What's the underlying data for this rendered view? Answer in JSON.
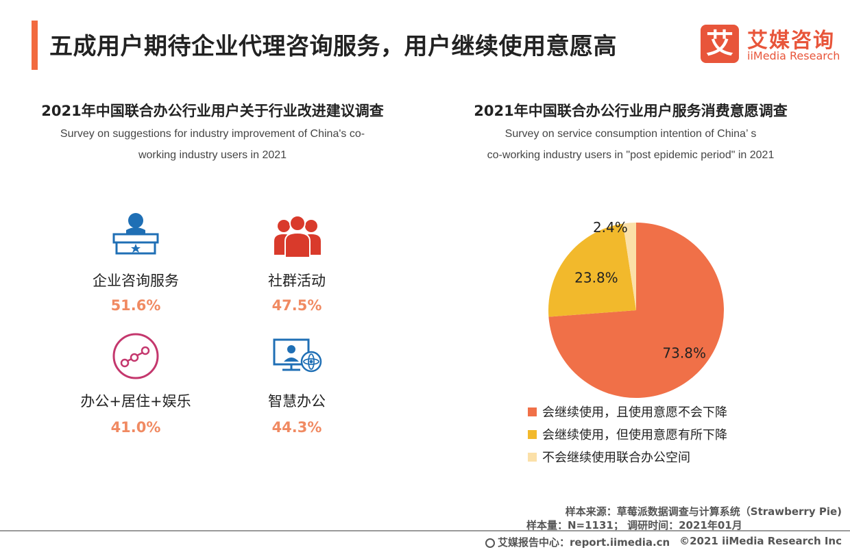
{
  "header": {
    "title": "五成用户期待企业代理咨询服务，用户继续使用意愿高",
    "logo_mark": "艾",
    "logo_cn": "艾媒咨询",
    "logo_en": "iiMedia Research"
  },
  "left": {
    "title": "2021年中国联合办公行业用户关于行业改进建议调查",
    "subtitle_line1": "Survey on suggestions for industry improvement of China's co-",
    "subtitle_line2": "working  industry users in 2021",
    "items": [
      {
        "label": "企业咨询服务",
        "value": "51.6%",
        "icon": "consultant-icon"
      },
      {
        "label": "社群活动",
        "value": "47.5%",
        "icon": "community-icon"
      },
      {
        "label": "办公+居住+娱乐",
        "value": "41.0%",
        "icon": "lifestyle-icon"
      },
      {
        "label": "智慧办公",
        "value": "44.3%",
        "icon": "smart-office-icon"
      }
    ]
  },
  "right": {
    "title": "2021年中国联合办公行业用户服务消费意愿调查",
    "subtitle_line1": "Survey on service consumption intention of China’ s",
    "subtitle_line2": "co-working  industry users in \"post epidemic period\" in 2021"
  },
  "chart_data": {
    "type": "pie",
    "title": "2021年中国联合办公行业用户服务消费意愿调查",
    "slices": [
      {
        "label": "会继续使用，且使用意愿不会下降",
        "value": 73.8,
        "display": "73.8%",
        "color": "#f07048"
      },
      {
        "label": "会继续使用，但使用意愿有所下降",
        "value": 23.8,
        "display": "23.8%",
        "color": "#f2b92c"
      },
      {
        "label": "不会继续使用联合办公空间",
        "value": 2.4,
        "display": "2.4%",
        "color": "#fbe0a8"
      }
    ],
    "legend_position": "bottom"
  },
  "footer": {
    "source": "样本来源：草莓派数据调查与计算系统（Strawberry Pie)",
    "sample": "样本量：N=1131；  调研时间：2021年01月",
    "site": "艾媒报告中心：report.iimedia.cn",
    "copyright": "©2021  iiMedia Research  Inc"
  },
  "colors": {
    "accent": "#f26a3f",
    "value": "#f08a62",
    "icon_blue": "#1f6fb5",
    "icon_red": "#d93a2b",
    "icon_pink": "#c4376d"
  }
}
